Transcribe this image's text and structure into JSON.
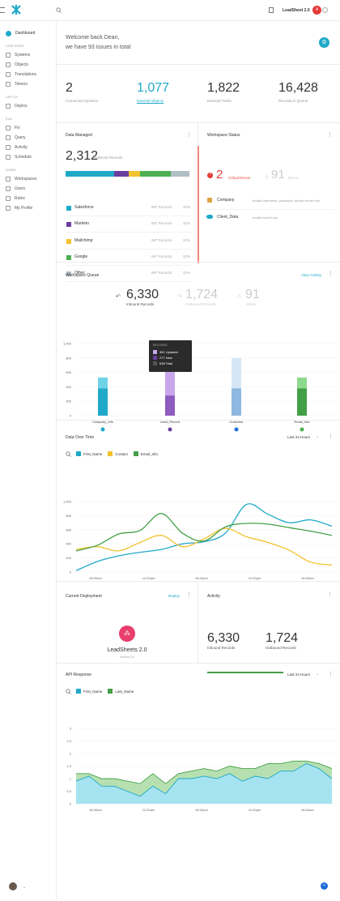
{
  "topbar": {
    "app_name": "LeadSheet 2.0",
    "avatar_initials": "A"
  },
  "sidebar": {
    "dashboard": "Dashboard",
    "groups": [
      {
        "head": "CONFIGURE",
        "items": [
          "Systems",
          "Objects",
          "Translations",
          "Tokens"
        ]
      },
      {
        "head": "DEPLOY",
        "items": [
          "Deploy"
        ]
      },
      {
        "head": "RUN",
        "items": [
          "Fix",
          "Query",
          "Activity",
          "Schedule"
        ]
      },
      {
        "head": "SHARE",
        "items": [
          "Workspaces",
          "Users",
          "Roles",
          "My Profile"
        ]
      }
    ]
  },
  "welcome": {
    "line1": "Welcome back Dean,",
    "line2": "we have 93 issues in total"
  },
  "stats": [
    {
      "value": "2",
      "label": "Connected Systems"
    },
    {
      "value": "1,077",
      "label": "External Objects"
    },
    {
      "value": "1,822",
      "label": "External Fields"
    },
    {
      "value": "16,428",
      "label": "Records in Queue"
    }
  ],
  "data_managed": {
    "title": "Data Managed",
    "total": "2,312",
    "total_label": "External Records",
    "rows": [
      {
        "name": "Salesforce",
        "records": "987 Records",
        "pct": "32%",
        "color": "#1fa9c9"
      },
      {
        "name": "Marketo",
        "records": "987 Records",
        "pct": "32%",
        "color": "#6b3fa0"
      },
      {
        "name": "Mailchimp",
        "records": "987 Records",
        "pct": "32%",
        "color": "#f2c12e"
      },
      {
        "name": "Google",
        "records": "987 Records",
        "pct": "32%",
        "color": "#4caf50"
      },
      {
        "name": "Other",
        "records": "987 Records",
        "pct": "32%",
        "color": "#b0bec5"
      }
    ]
  },
  "workspace_status": {
    "title": "Workspace Status",
    "critical_count": "2",
    "critical_label": "Critical Errors",
    "errors_count": "91",
    "errors_label": "Errors",
    "items": [
      {
        "name": "Company",
        "msg": "Invalid username, password, and/or secret key"
      },
      {
        "name": "Client_Data",
        "msg": "Invalid secret key"
      }
    ]
  },
  "workspace_queue": {
    "title": "Workspace Queue",
    "view_activity": "View Activity",
    "inbound": "6,330",
    "inbound_label": "Inbound Records",
    "outbound": "1,724",
    "outbound_label": "Outbound Records",
    "errors": "91",
    "errors_label": "Errors",
    "tooltip": {
      "title": "RECORDS",
      "rows": [
        "361 Updated",
        "277 New",
        "638 Total"
      ]
    }
  },
  "chart_queue": {
    "type": "bar",
    "categories": [
      "Company_Info",
      "Lead_Record",
      "Customer",
      "Email_Info"
    ],
    "yticks": [
      "1,000",
      "800",
      "600",
      "400",
      "200",
      "0"
    ],
    "ylim": [
      0,
      1000
    ],
    "series": [
      {
        "values": [
          380,
          280,
          380,
          380
        ],
        "colors": [
          "#1fa9c9",
          "#8e5bbf",
          "#8fb8e0",
          "#43a047"
        ]
      },
      {
        "values": [
          150,
          380,
          420,
          150
        ],
        "colors": [
          "#6fd3e8",
          "#c9a6ec",
          "#d5e6f6",
          "#8fd98f"
        ]
      }
    ]
  },
  "data_over_time": {
    "title": "Data Over Time",
    "range": "Last 24 Hours",
    "legend": [
      "First_Name",
      "Contact",
      "Email_Info"
    ]
  },
  "chart_time": {
    "type": "line",
    "xticks": [
      "06:00am",
      "12:00am",
      "06:00pm",
      "12:00pm",
      "06:00am"
    ],
    "yticks": [
      "1,000",
      "800",
      "600",
      "400",
      "200",
      "0"
    ],
    "ylim": [
      0,
      1000
    ],
    "x": [
      0,
      1,
      2,
      3,
      4,
      5,
      6,
      7,
      8,
      9,
      10,
      11,
      12
    ],
    "series": [
      {
        "name": "First_Name",
        "color": "#1fa9c9",
        "values": [
          20,
          150,
          230,
          280,
          320,
          400,
          430,
          550,
          960,
          820,
          700,
          740,
          650
        ]
      },
      {
        "name": "Contact",
        "color": "#f2c12e",
        "values": [
          320,
          360,
          300,
          420,
          520,
          360,
          470,
          620,
          500,
          420,
          310,
          140,
          100
        ]
      },
      {
        "name": "Email_Info",
        "color": "#43a047",
        "values": [
          300,
          380,
          540,
          590,
          830,
          550,
          440,
          640,
          690,
          680,
          630,
          580,
          520
        ]
      }
    ]
  },
  "deployment": {
    "title": "Current Deployment",
    "deploy": "Deploy",
    "name": "LeadSheets 2.0",
    "version": "version 2.4"
  },
  "activity": {
    "title": "Activity",
    "inbound": "6,330",
    "inbound_label": "Inbound Records",
    "outbound": "1,724",
    "outbound_label": "Outbound Records"
  },
  "api_response": {
    "title": "API Response",
    "range": "Last 24 Hours",
    "legend": [
      "First_Name",
      "Last_Name"
    ]
  },
  "chart_api": {
    "type": "area",
    "xticks": [
      "06:00am",
      "12:00am",
      "06:00pm",
      "12:00pm",
      "06:00am"
    ],
    "yticks": [
      "3",
      "2.5",
      "2",
      "1.5",
      "1",
      "0.5",
      "0"
    ],
    "ylim": [
      0,
      3
    ],
    "x": [
      0,
      1,
      2,
      3,
      4,
      5,
      6,
      7,
      8,
      9,
      10,
      11,
      12,
      13,
      14,
      15,
      16,
      17,
      18,
      19,
      20
    ],
    "series": [
      {
        "name": "First_Name",
        "color": "#1fa9c9",
        "fill": "#a6e3f1",
        "values": [
          0.9,
          1.1,
          0.7,
          0.7,
          0.5,
          0.3,
          0.7,
          0.4,
          1.0,
          1.0,
          1.1,
          1.0,
          1.2,
          0.9,
          1.1,
          1.0,
          1.3,
          1.3,
          1.6,
          1.4,
          1.0
        ]
      },
      {
        "name": "Last_Name",
        "color": "#43a047",
        "fill": "#b7e0b1",
        "values": [
          1.2,
          1.2,
          1.0,
          1.0,
          0.9,
          0.8,
          1.2,
          0.8,
          1.2,
          1.3,
          1.4,
          1.3,
          1.5,
          1.4,
          1.4,
          1.6,
          1.6,
          1.7,
          1.7,
          1.6,
          1.4
        ]
      }
    ]
  },
  "footer": {
    "help_icon": "help"
  }
}
